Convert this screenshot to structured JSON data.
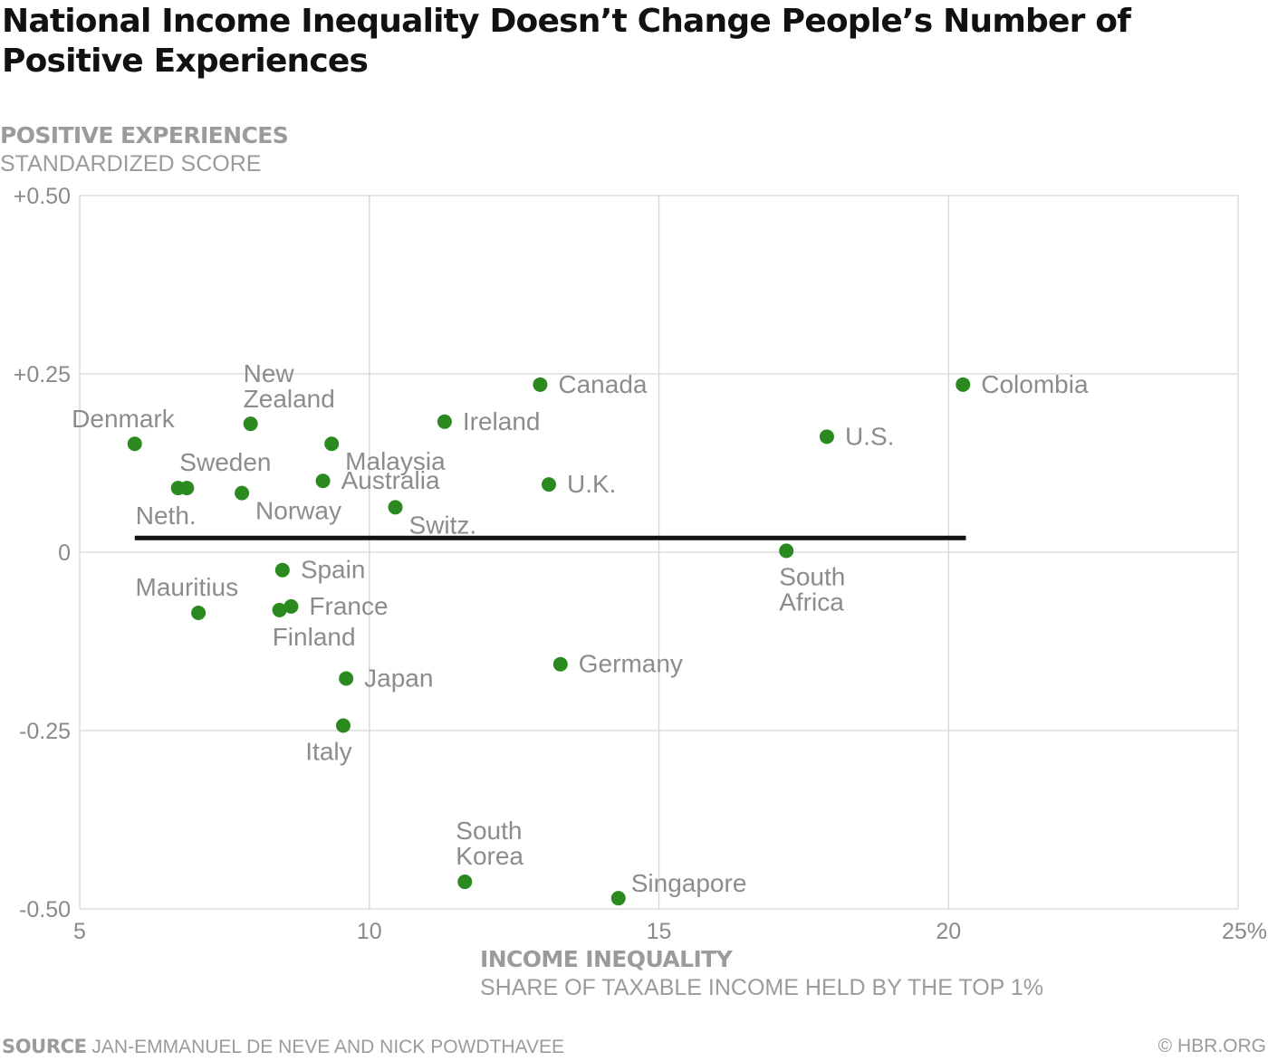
{
  "title": "National Income Inequality Doesn’t Change People’s Number of Positive Experiences",
  "y_axis": {
    "title": "POSITIVE EXPERIENCES",
    "subtitle": "STANDARDIZED SCORE"
  },
  "x_axis": {
    "title": "INCOME INEQUALITY",
    "subtitle": "SHARE OF TAXABLE INCOME HELD BY THE TOP 1%"
  },
  "source": {
    "label": "SOURCE",
    "text": "JAN-EMMANUEL DE NEVE AND NICK POWDTHAVEE"
  },
  "credit": "© HBR.ORG",
  "colors": {
    "point": "#2b8a1f",
    "trend": "#111111",
    "grid": "#d6d6d6",
    "label": "#8c8c8c"
  },
  "chart_data": {
    "type": "scatter",
    "title": "National Income Inequality Doesn’t Change People’s Number of Positive Experiences",
    "xlabel": "INCOME INEQUALITY — SHARE OF TAXABLE INCOME HELD BY THE TOP 1%",
    "ylabel": "POSITIVE EXPERIENCES — STANDARDIZED SCORE",
    "xlim": [
      5,
      25
    ],
    "ylim": [
      -0.5,
      0.5
    ],
    "grid": true,
    "x_ticks": [
      {
        "value": 5,
        "label": "5"
      },
      {
        "value": 10,
        "label": "10"
      },
      {
        "value": 15,
        "label": "15"
      },
      {
        "value": 20,
        "label": "20"
      },
      {
        "value": 25,
        "label": "25%"
      }
    ],
    "y_ticks": [
      {
        "value": 0.5,
        "label": "+0.50"
      },
      {
        "value": 0.25,
        "label": "+0.25"
      },
      {
        "value": 0,
        "label": "0"
      },
      {
        "value": -0.25,
        "label": "-0.25"
      },
      {
        "value": -0.5,
        "label": "-0.50"
      }
    ],
    "trend_line": {
      "x": [
        5.95,
        20.3
      ],
      "y": [
        0.02,
        0.02
      ]
    },
    "points": [
      {
        "label": "Denmark",
        "x": 5.95,
        "y": 0.152,
        "label_pos": "above-left"
      },
      {
        "label": "Neth.",
        "x": 6.7,
        "y": 0.09,
        "label_pos": "below-left"
      },
      {
        "label": "Sweden",
        "x": 6.85,
        "y": 0.09,
        "label_pos": "above-right"
      },
      {
        "label": "Mauritius",
        "x": 7.05,
        "y": -0.085,
        "label_pos": "above-left"
      },
      {
        "label": "Norway",
        "x": 7.8,
        "y": 0.083,
        "label_pos": "below-right"
      },
      {
        "label": "New Zealand",
        "x": 7.95,
        "y": 0.18,
        "label_pos": "above-stacked"
      },
      {
        "label": "Finland",
        "x": 8.45,
        "y": -0.081,
        "label_pos": "below"
      },
      {
        "label": "Spain",
        "x": 8.5,
        "y": -0.025,
        "label_pos": "right"
      },
      {
        "label": "France",
        "x": 8.65,
        "y": -0.076,
        "label_pos": "right"
      },
      {
        "label": "Australia",
        "x": 9.2,
        "y": 0.1,
        "label_pos": "right"
      },
      {
        "label": "Malaysia",
        "x": 9.35,
        "y": 0.152,
        "label_pos": "below-right"
      },
      {
        "label": "Italy",
        "x": 9.55,
        "y": -0.243,
        "label_pos": "below"
      },
      {
        "label": "Japan",
        "x": 9.6,
        "y": -0.177,
        "label_pos": "right"
      },
      {
        "label": "Switz.",
        "x": 10.45,
        "y": 0.063,
        "label_pos": "below-right"
      },
      {
        "label": "Ireland",
        "x": 11.3,
        "y": 0.183,
        "label_pos": "right"
      },
      {
        "label": "South Korea",
        "x": 11.65,
        "y": -0.462,
        "label_pos": "above-stacked"
      },
      {
        "label": "Canada",
        "x": 12.95,
        "y": 0.235,
        "label_pos": "right"
      },
      {
        "label": "U.K.",
        "x": 13.1,
        "y": 0.095,
        "label_pos": "right"
      },
      {
        "label": "Germany",
        "x": 13.3,
        "y": -0.157,
        "label_pos": "right"
      },
      {
        "label": "Singapore",
        "x": 14.3,
        "y": -0.485,
        "label_pos": "above-right"
      },
      {
        "label": "South Africa",
        "x": 17.2,
        "y": 0.002,
        "label_pos": "below-stacked"
      },
      {
        "label": "U.S.",
        "x": 17.9,
        "y": 0.162,
        "label_pos": "right"
      },
      {
        "label": "Colombia",
        "x": 20.25,
        "y": 0.235,
        "label_pos": "right"
      }
    ]
  }
}
